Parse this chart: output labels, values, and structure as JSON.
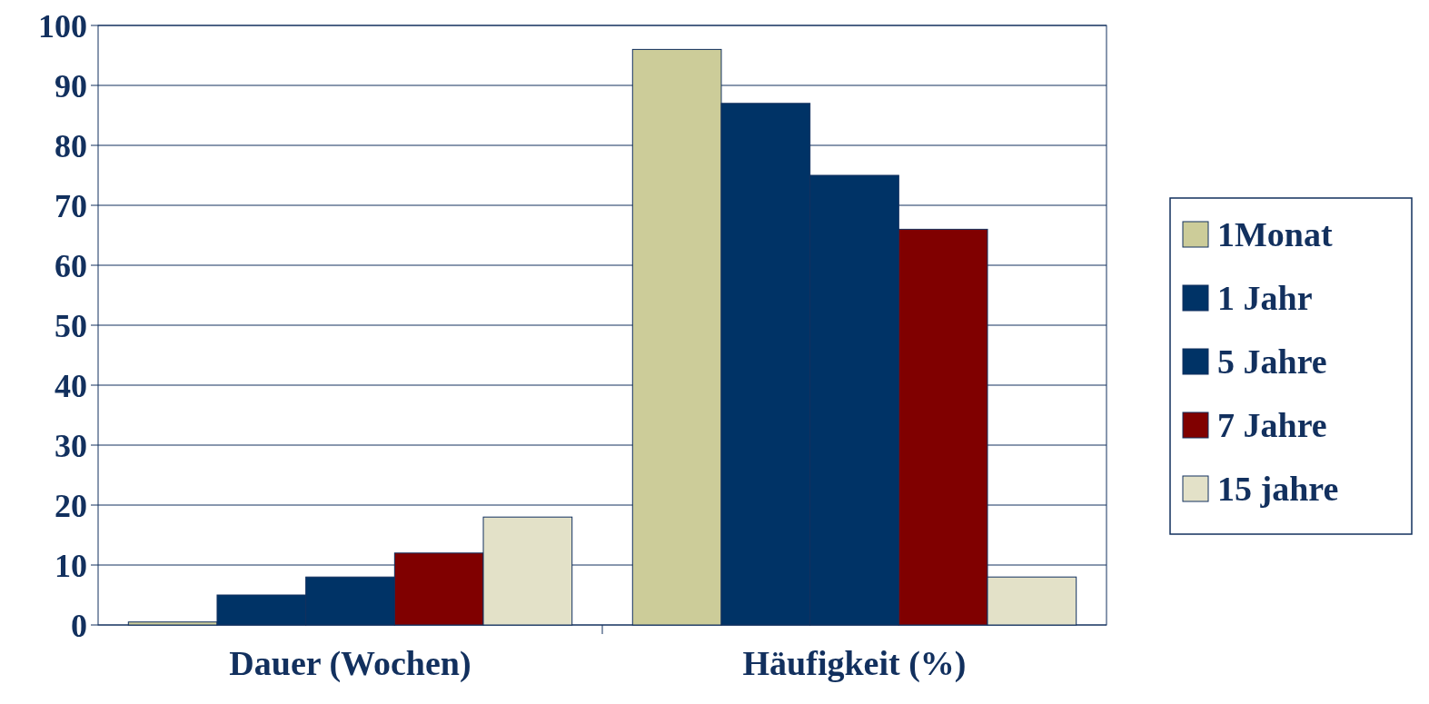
{
  "chart_data": {
    "type": "bar",
    "categories": [
      "Dauer (Wochen)",
      "Häufigkeit (%)"
    ],
    "series": [
      {
        "name": "1Monat",
        "color": "#cccc99",
        "values": [
          0.5,
          96
        ]
      },
      {
        "name": "1 Jahr",
        "color": "#003366",
        "values": [
          5,
          87
        ]
      },
      {
        "name": "5 Jahre",
        "color": "#003366",
        "values": [
          8,
          75
        ]
      },
      {
        "name": "7 Jahre",
        "color": "#800000",
        "values": [
          12,
          66
        ]
      },
      {
        "name": "15 jahre",
        "color": "#e3e1c8",
        "values": [
          18,
          8
        ]
      }
    ],
    "ylim": [
      0,
      100
    ],
    "yticks": [
      0,
      10,
      20,
      30,
      40,
      50,
      60,
      70,
      80,
      90,
      100
    ],
    "grid": "y",
    "legend": "right"
  }
}
